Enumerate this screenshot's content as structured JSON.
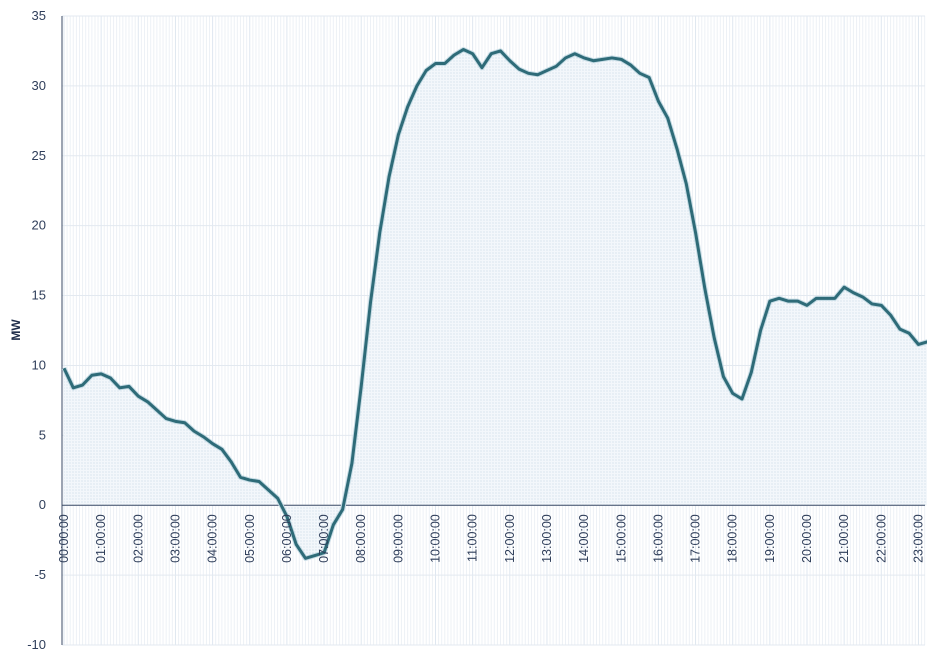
{
  "chart_data": {
    "type": "area",
    "title": "",
    "xlabel": "",
    "ylabel": "MW",
    "ylim": [
      -10,
      35
    ],
    "yticks": [
      35,
      30,
      25,
      20,
      15,
      10,
      5,
      0,
      -5,
      -10
    ],
    "grid": true,
    "legend": "none",
    "line_color": "#2e6b78",
    "x_tick_labels": [
      "00:00:00",
      "01:00:00",
      "02:00:00",
      "03:00:00",
      "04:00:00",
      "05:00:00",
      "06:00:00",
      "07:00:00",
      "08:00:00",
      "09:00:00",
      "10:00:00",
      "11:00:00",
      "12:00:00",
      "13:00:00",
      "14:00:00",
      "15:00:00",
      "16:00:00",
      "17:00:00",
      "18:00:00",
      "19:00:00",
      "20:00:00",
      "21:00:00",
      "22:00:00",
      "23:00:00"
    ],
    "x_interval_minutes": 15,
    "series": [
      {
        "values": [
          9.8,
          8.4,
          8.6,
          9.3,
          9.4,
          9.1,
          8.4,
          8.5,
          7.8,
          7.4,
          6.8,
          6.2,
          6.0,
          5.9,
          5.3,
          4.9,
          4.4,
          4.0,
          3.1,
          2.0,
          1.8,
          1.7,
          1.1,
          0.5,
          -0.8,
          -2.8,
          -3.8,
          -3.6,
          -3.4,
          -1.4,
          -0.3,
          3.0,
          8.5,
          14.5,
          19.5,
          23.5,
          26.5,
          28.5,
          30.0,
          31.1,
          31.6,
          31.6,
          32.2,
          32.6,
          32.3,
          31.3,
          32.3,
          32.5,
          31.8,
          31.2,
          30.9,
          30.8,
          31.1,
          31.4,
          32.0,
          32.3,
          32.0,
          31.8,
          31.9,
          32.0,
          31.9,
          31.5,
          30.9,
          30.6,
          28.9,
          27.7,
          25.5,
          23.0,
          19.5,
          15.5,
          12.0,
          9.2,
          8.0,
          7.6,
          9.5,
          12.5,
          14.6,
          14.8,
          14.6,
          14.6,
          14.3,
          14.8,
          14.8,
          14.8,
          15.6,
          15.2,
          14.9,
          14.4,
          14.3,
          13.6,
          12.6,
          12.3,
          11.5,
          11.7,
          11.8,
          11.1
        ]
      }
    ]
  }
}
